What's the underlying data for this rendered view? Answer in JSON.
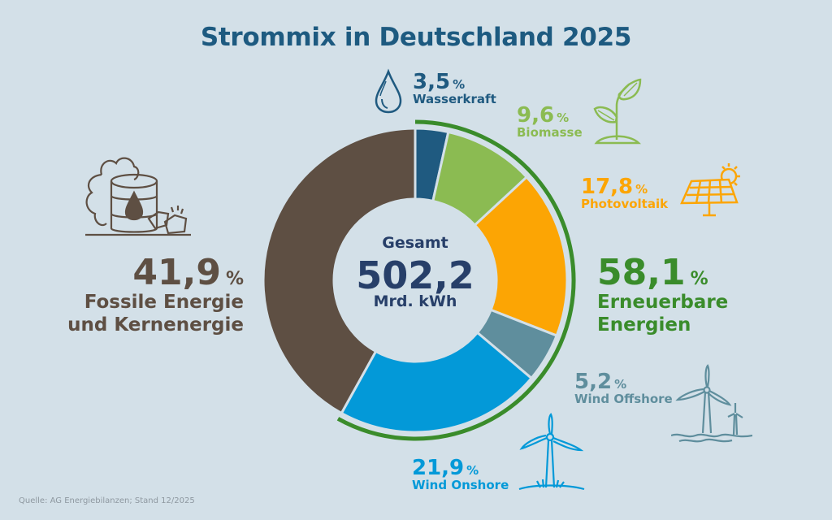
{
  "title": "Strommix in Deutschland 2025",
  "center": {
    "label": "Gesamt",
    "value": "502,2",
    "unit": "Mrd. kWh"
  },
  "source": "Quelle: AG Energiebilanzen; Stand 12/2025",
  "groups": {
    "renewable": {
      "pct": "58,1",
      "unit": "%",
      "line1": "Erneuerbare",
      "line2": "Energien",
      "color": "#3a8c2b"
    },
    "fossil": {
      "pct": "41,9",
      "unit": "%",
      "line1": "Fossile Energie",
      "line2": "und Kernenergie",
      "color": "#5e4f43"
    }
  },
  "chart_data": {
    "type": "pie",
    "variant": "donut",
    "title": "Strommix in Deutschland 2025",
    "total": 502.2,
    "total_unit": "Mrd. kWh",
    "start_angle": "12 o'clock, clockwise",
    "slices": [
      {
        "name": "Wasserkraft",
        "value": 3.5,
        "label": "3,5",
        "color": "#1f5a80",
        "icon": "water-drop-icon"
      },
      {
        "name": "Biomasse",
        "value": 9.6,
        "label": "9,6",
        "color": "#8bbb52",
        "icon": "plant-sprout-icon"
      },
      {
        "name": "Photovoltaik",
        "value": 17.8,
        "label": "17,8",
        "color": "#fca504",
        "icon": "solar-panel-icon"
      },
      {
        "name": "Wind Offshore",
        "value": 5.2,
        "label": "5,2",
        "color": "#5f8e9d",
        "icon": "offshore-wind-turbine-icon"
      },
      {
        "name": "Wind Onshore",
        "value": 21.9,
        "label": "21,9",
        "color": "#0399d8",
        "icon": "onshore-wind-turbine-icon"
      },
      {
        "name": "Fossile Energie und Kernenergie",
        "value": 41.9,
        "label": "41,9",
        "color": "#5e4f43",
        "icon": "oil-barrel-coal-icon"
      }
    ],
    "group_arc": {
      "name": "Erneuerbare Energien",
      "value": 58.1,
      "color": "#3a8c2b"
    },
    "unit": "%"
  }
}
